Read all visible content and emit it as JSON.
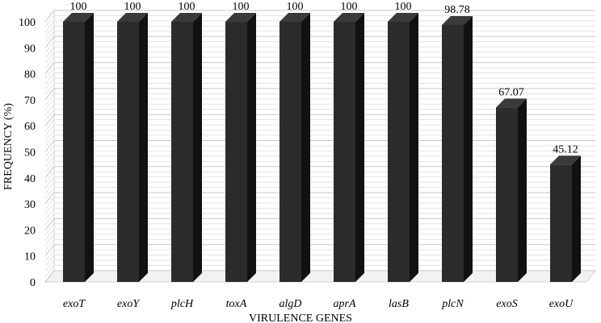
{
  "chart_data": {
    "type": "bar",
    "categories": [
      "exoT",
      "exoY",
      "plcH",
      "toxA",
      "algD",
      "aprA",
      "lasB",
      "plcN",
      "exoS",
      "exoU"
    ],
    "values": [
      100,
      100,
      100,
      100,
      100,
      100,
      100,
      98.78,
      67.07,
      45.12
    ],
    "data_labels": [
      "100",
      "100",
      "100",
      "100",
      "100",
      "100",
      "100",
      "98.78",
      "67.07",
      "45.12"
    ],
    "xlabel": "VIRULENCE GENES",
    "ylabel": "FREQUENCY (%)",
    "ylim": [
      0,
      100
    ],
    "yticks": [
      0,
      10,
      20,
      30,
      40,
      50,
      60,
      70,
      80,
      90,
      100
    ],
    "grid": true,
    "bar_color": "#2b2b2b",
    "bar_side_color": "#111111",
    "bar_top_color": "#3a3a3a"
  }
}
